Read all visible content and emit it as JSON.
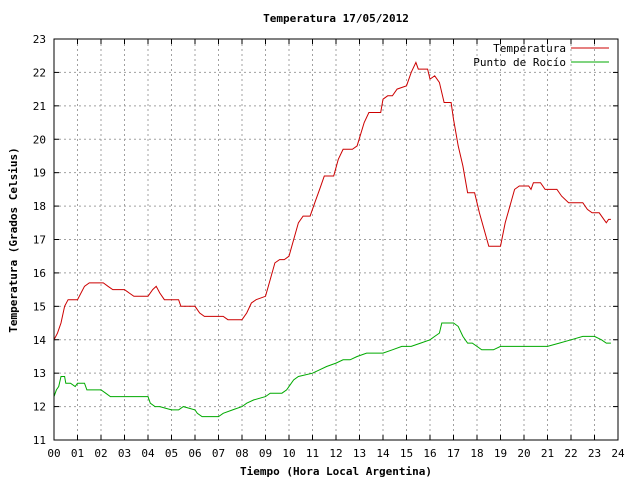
{
  "chart_data": {
    "type": "line",
    "title": "Temperatura 17/05/2012",
    "xlabel": "Tiempo (Hora Local Argentina)",
    "ylabel": "Temperatura (Grados Celsius)",
    "xlim": [
      0,
      24
    ],
    "ylim": [
      11,
      23
    ],
    "x_ticks": [
      "00",
      "01",
      "02",
      "03",
      "04",
      "05",
      "06",
      "07",
      "08",
      "09",
      "10",
      "11",
      "12",
      "13",
      "14",
      "15",
      "16",
      "17",
      "18",
      "19",
      "20",
      "21",
      "22",
      "23",
      "24"
    ],
    "y_ticks": [
      11,
      12,
      13,
      14,
      15,
      16,
      17,
      18,
      19,
      20,
      21,
      22,
      23
    ],
    "grid": true,
    "legend_position": "top-right",
    "series": [
      {
        "name": "Temperatura",
        "color": "#cc0000",
        "points": [
          [
            0.0,
            14.0
          ],
          [
            0.15,
            14.2
          ],
          [
            0.3,
            14.5
          ],
          [
            0.45,
            15.0
          ],
          [
            0.6,
            15.2
          ],
          [
            1.0,
            15.2
          ],
          [
            1.3,
            15.6
          ],
          [
            1.5,
            15.7
          ],
          [
            2.1,
            15.7
          ],
          [
            2.3,
            15.6
          ],
          [
            2.5,
            15.5
          ],
          [
            3.0,
            15.5
          ],
          [
            3.2,
            15.4
          ],
          [
            3.4,
            15.3
          ],
          [
            4.0,
            15.3
          ],
          [
            4.2,
            15.5
          ],
          [
            4.35,
            15.6
          ],
          [
            4.5,
            15.4
          ],
          [
            4.7,
            15.2
          ],
          [
            5.3,
            15.2
          ],
          [
            5.4,
            15.0
          ],
          [
            6.0,
            15.0
          ],
          [
            6.2,
            14.8
          ],
          [
            6.4,
            14.7
          ],
          [
            7.2,
            14.7
          ],
          [
            7.4,
            14.6
          ],
          [
            8.0,
            14.6
          ],
          [
            8.2,
            14.8
          ],
          [
            8.4,
            15.1
          ],
          [
            8.6,
            15.2
          ],
          [
            9.0,
            15.3
          ],
          [
            9.2,
            15.8
          ],
          [
            9.4,
            16.3
          ],
          [
            9.6,
            16.4
          ],
          [
            9.8,
            16.4
          ],
          [
            10.0,
            16.5
          ],
          [
            10.2,
            17.0
          ],
          [
            10.4,
            17.5
          ],
          [
            10.6,
            17.7
          ],
          [
            10.9,
            17.7
          ],
          [
            11.1,
            18.1
          ],
          [
            11.3,
            18.5
          ],
          [
            11.5,
            18.9
          ],
          [
            11.9,
            18.9
          ],
          [
            12.1,
            19.4
          ],
          [
            12.3,
            19.7
          ],
          [
            12.7,
            19.7
          ],
          [
            12.9,
            19.8
          ],
          [
            13.2,
            20.5
          ],
          [
            13.4,
            20.8
          ],
          [
            13.9,
            20.8
          ],
          [
            14.0,
            21.2
          ],
          [
            14.2,
            21.3
          ],
          [
            14.4,
            21.3
          ],
          [
            14.6,
            21.5
          ],
          [
            15.0,
            21.6
          ],
          [
            15.2,
            22.0
          ],
          [
            15.4,
            22.3
          ],
          [
            15.5,
            22.1
          ],
          [
            15.9,
            22.1
          ],
          [
            16.0,
            21.8
          ],
          [
            16.2,
            21.9
          ],
          [
            16.4,
            21.7
          ],
          [
            16.6,
            21.1
          ],
          [
            16.9,
            21.1
          ],
          [
            17.0,
            20.6
          ],
          [
            17.2,
            19.8
          ],
          [
            17.4,
            19.2
          ],
          [
            17.6,
            18.4
          ],
          [
            17.9,
            18.4
          ],
          [
            18.1,
            17.8
          ],
          [
            18.3,
            17.3
          ],
          [
            18.5,
            16.8
          ],
          [
            19.0,
            16.8
          ],
          [
            19.2,
            17.5
          ],
          [
            19.4,
            18.0
          ],
          [
            19.6,
            18.5
          ],
          [
            19.8,
            18.6
          ],
          [
            20.2,
            18.6
          ],
          [
            20.3,
            18.5
          ],
          [
            20.4,
            18.7
          ],
          [
            20.7,
            18.7
          ],
          [
            20.9,
            18.5
          ],
          [
            21.4,
            18.5
          ],
          [
            21.6,
            18.3
          ],
          [
            21.9,
            18.1
          ],
          [
            22.5,
            18.1
          ],
          [
            22.7,
            17.9
          ],
          [
            22.9,
            17.8
          ],
          [
            23.2,
            17.8
          ],
          [
            23.4,
            17.6
          ],
          [
            23.5,
            17.5
          ],
          [
            23.6,
            17.6
          ],
          [
            23.7,
            17.6
          ]
        ]
      },
      {
        "name": "Punto de Rocío",
        "color": "#00aa00",
        "points": [
          [
            0.0,
            12.3
          ],
          [
            0.1,
            12.5
          ],
          [
            0.2,
            12.6
          ],
          [
            0.3,
            12.9
          ],
          [
            0.45,
            12.9
          ],
          [
            0.5,
            12.7
          ],
          [
            0.7,
            12.7
          ],
          [
            0.9,
            12.6
          ],
          [
            1.0,
            12.7
          ],
          [
            1.3,
            12.7
          ],
          [
            1.4,
            12.5
          ],
          [
            2.0,
            12.5
          ],
          [
            2.2,
            12.4
          ],
          [
            2.4,
            12.3
          ],
          [
            3.0,
            12.3
          ],
          [
            3.2,
            12.3
          ],
          [
            4.0,
            12.3
          ],
          [
            4.1,
            12.1
          ],
          [
            4.3,
            12.0
          ],
          [
            4.5,
            12.0
          ],
          [
            5.0,
            11.9
          ],
          [
            5.3,
            11.9
          ],
          [
            5.5,
            12.0
          ],
          [
            6.0,
            11.9
          ],
          [
            6.1,
            11.8
          ],
          [
            6.3,
            11.7
          ],
          [
            7.0,
            11.7
          ],
          [
            7.2,
            11.8
          ],
          [
            7.6,
            11.9
          ],
          [
            8.0,
            12.0
          ],
          [
            8.2,
            12.1
          ],
          [
            8.5,
            12.2
          ],
          [
            9.0,
            12.3
          ],
          [
            9.2,
            12.4
          ],
          [
            9.7,
            12.4
          ],
          [
            9.9,
            12.5
          ],
          [
            10.2,
            12.8
          ],
          [
            10.4,
            12.9
          ],
          [
            11.0,
            13.0
          ],
          [
            11.3,
            13.1
          ],
          [
            11.6,
            13.2
          ],
          [
            12.0,
            13.3
          ],
          [
            12.3,
            13.4
          ],
          [
            12.6,
            13.4
          ],
          [
            12.9,
            13.5
          ],
          [
            13.3,
            13.6
          ],
          [
            13.7,
            13.6
          ],
          [
            14.0,
            13.6
          ],
          [
            14.4,
            13.7
          ],
          [
            14.8,
            13.8
          ],
          [
            15.2,
            13.8
          ],
          [
            15.6,
            13.9
          ],
          [
            16.0,
            14.0
          ],
          [
            16.2,
            14.1
          ],
          [
            16.4,
            14.2
          ],
          [
            16.5,
            14.5
          ],
          [
            16.7,
            14.5
          ],
          [
            17.0,
            14.5
          ],
          [
            17.2,
            14.4
          ],
          [
            17.4,
            14.1
          ],
          [
            17.6,
            13.9
          ],
          [
            17.8,
            13.9
          ],
          [
            18.0,
            13.8
          ],
          [
            18.2,
            13.7
          ],
          [
            18.4,
            13.7
          ],
          [
            18.7,
            13.7
          ],
          [
            19.0,
            13.8
          ],
          [
            19.4,
            13.8
          ],
          [
            20.0,
            13.8
          ],
          [
            20.5,
            13.8
          ],
          [
            21.0,
            13.8
          ],
          [
            21.5,
            13.9
          ],
          [
            22.0,
            14.0
          ],
          [
            22.5,
            14.1
          ],
          [
            23.0,
            14.1
          ],
          [
            23.3,
            14.0
          ],
          [
            23.5,
            13.9
          ],
          [
            23.7,
            13.9
          ]
        ]
      }
    ]
  }
}
